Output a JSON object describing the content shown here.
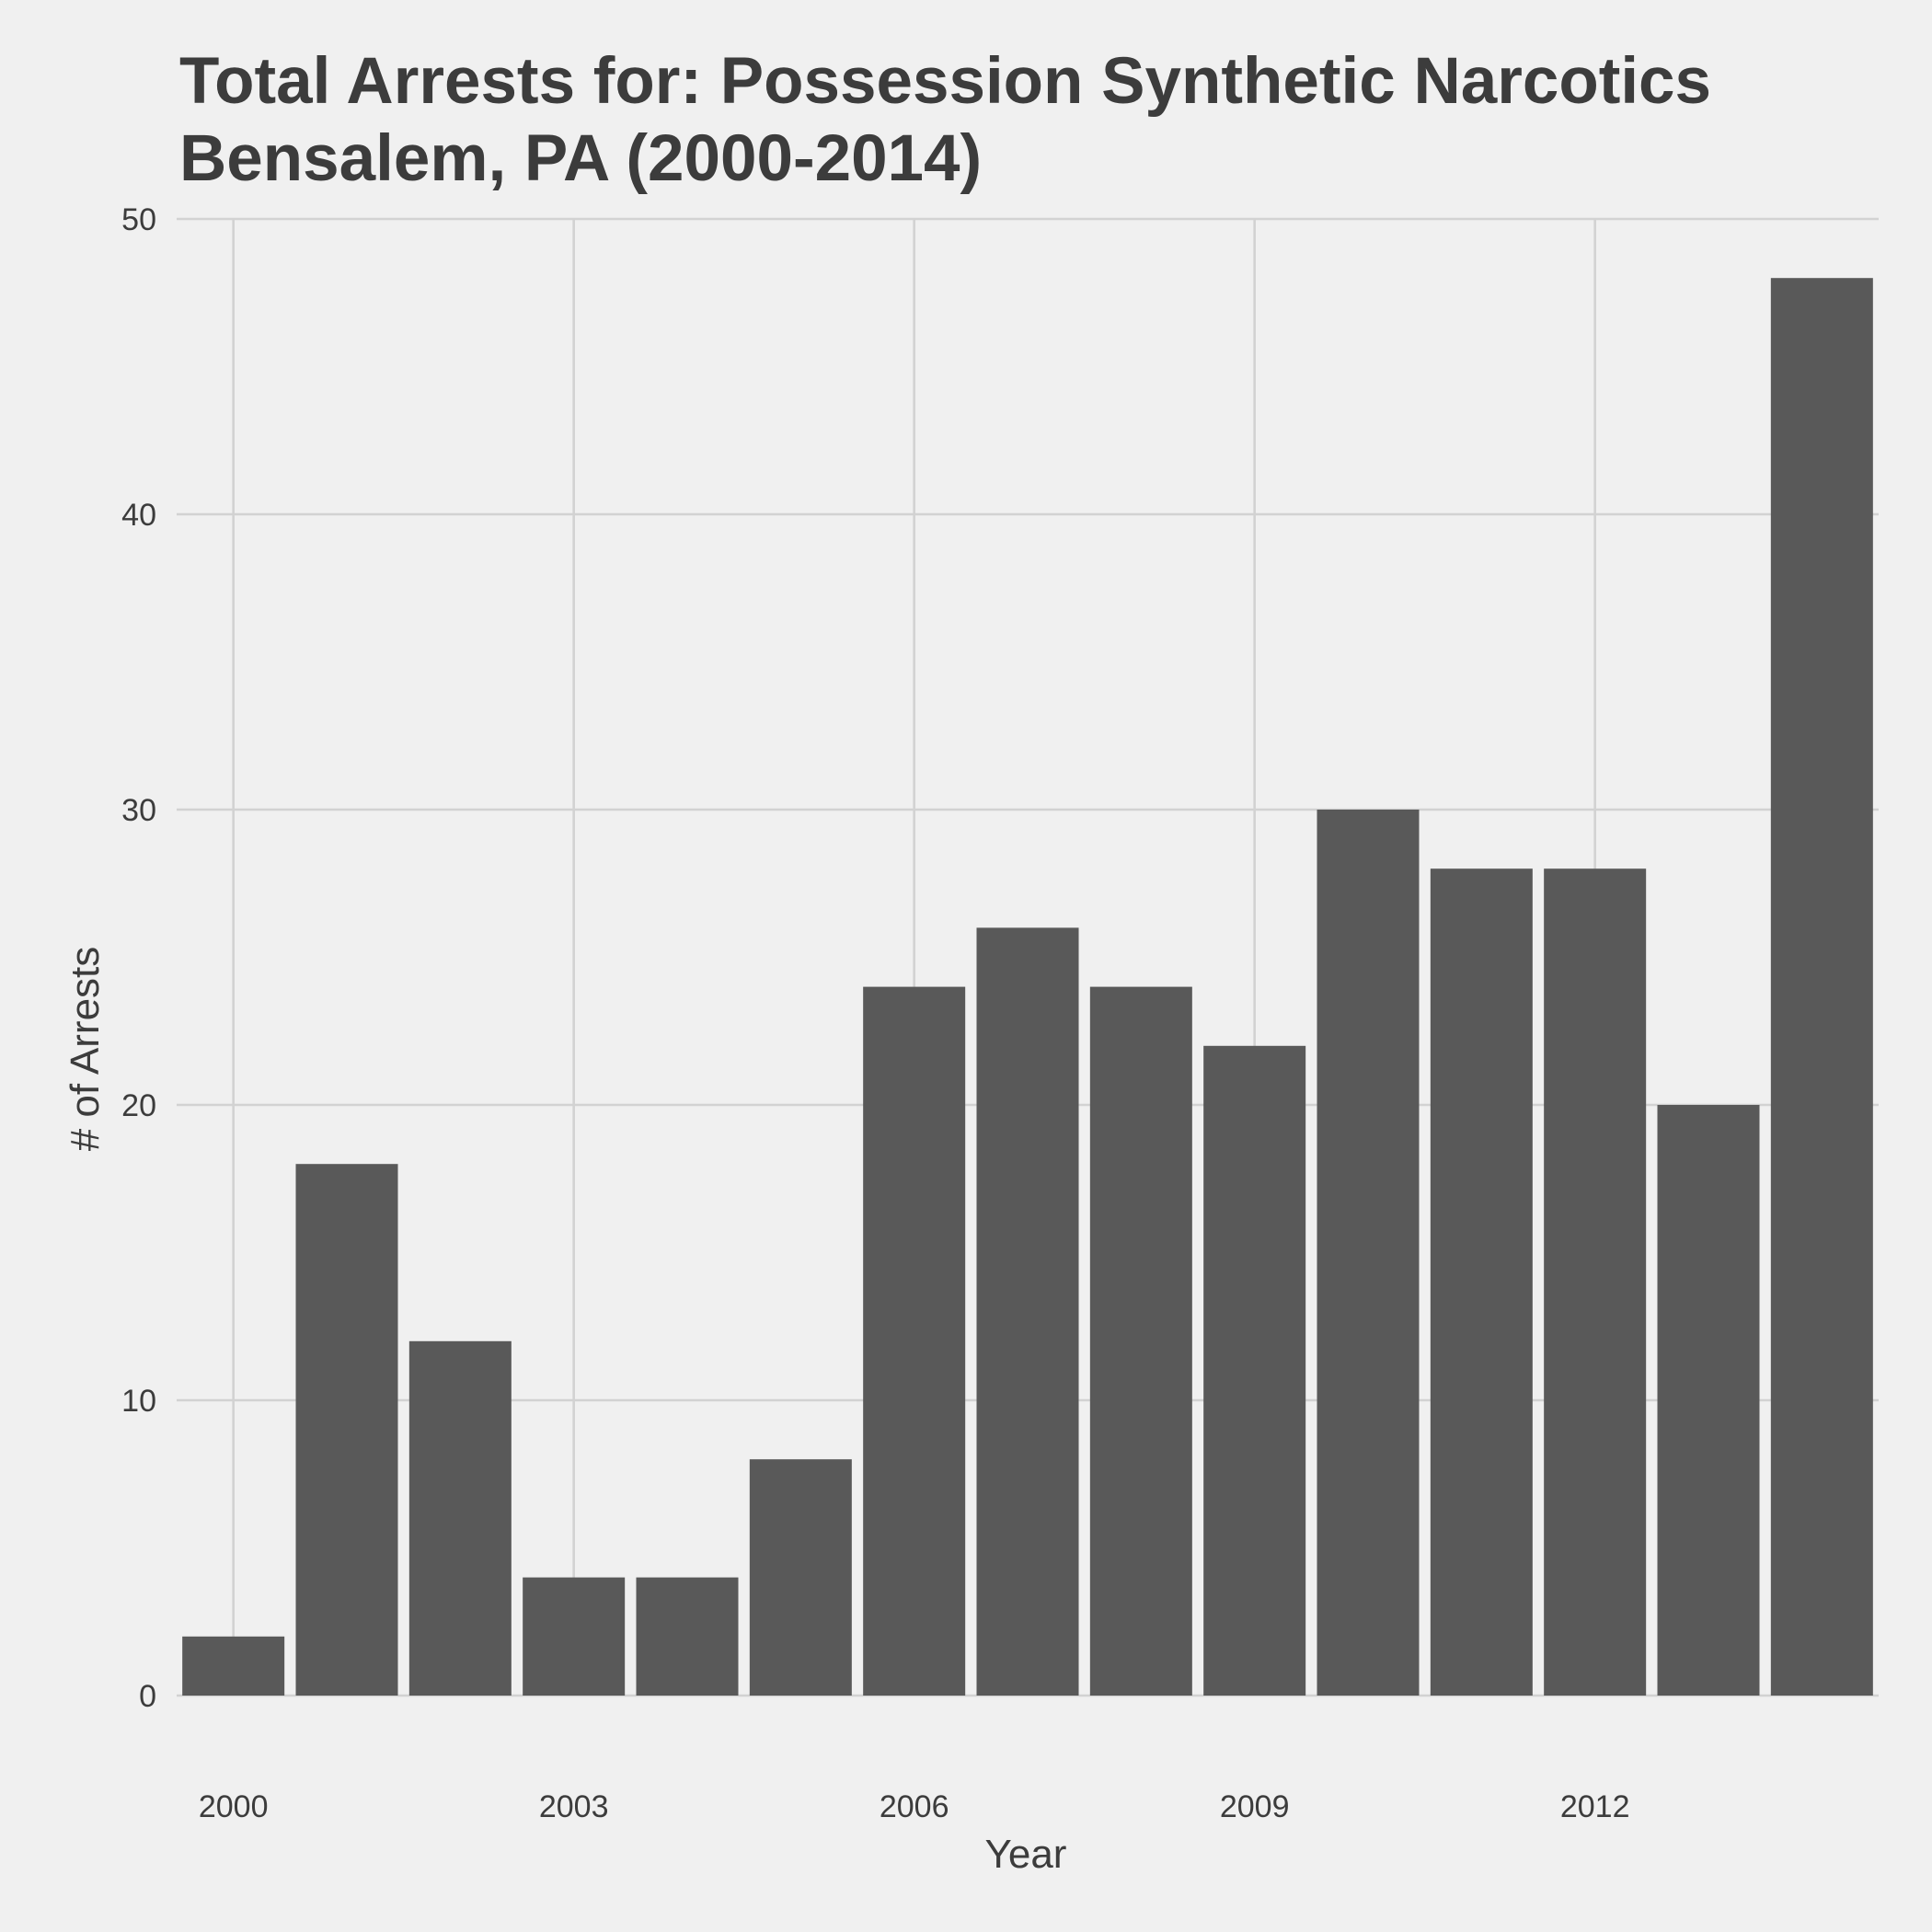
{
  "chart_data": {
    "type": "bar",
    "title_lines": [
      "Total Arrests for: Possession Synthetic Narcotics",
      "Bensalem, PA (2000-2014)"
    ],
    "xlabel": "Year",
    "ylabel": "# of Arrests",
    "categories": [
      2000,
      2001,
      2002,
      2003,
      2004,
      2005,
      2006,
      2007,
      2008,
      2009,
      2010,
      2011,
      2012,
      2013,
      2014
    ],
    "values": [
      2,
      18,
      12,
      4,
      4,
      8,
      24,
      26,
      24,
      22,
      30,
      28,
      28,
      20,
      48
    ],
    "x_ticks": [
      2000,
      2003,
      2006,
      2009,
      2012
    ],
    "y_ticks": [
      0,
      10,
      20,
      30,
      40,
      50
    ],
    "ylim": [
      0,
      50
    ],
    "bar_color": "#595959",
    "grid": true,
    "legend": "none"
  }
}
